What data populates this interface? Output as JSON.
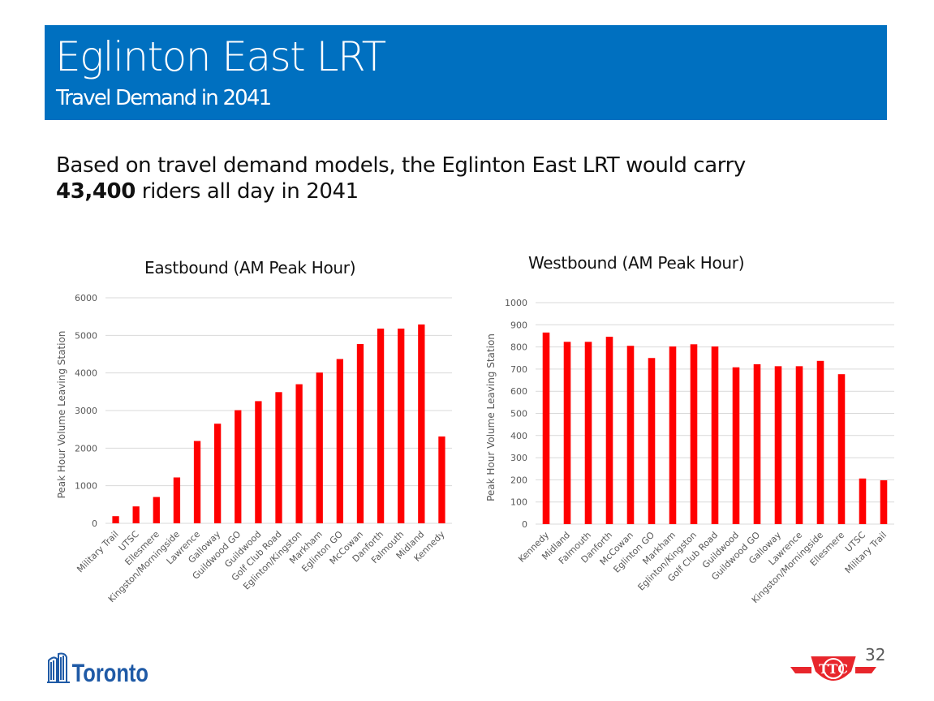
{
  "banner": {
    "title": "Eglinton East LRT",
    "subtitle": "Travel Demand in 2041"
  },
  "intro": {
    "line1": "Based on travel demand models, the Eglinton East LRT would carry",
    "highlight": "43,400",
    "line2_rest": " riders all day in 2041"
  },
  "footer": {
    "page_number": "32",
    "left_logo": "Toronto",
    "right_logo": "TTC"
  },
  "colors": {
    "banner": "#0070c0",
    "bar": "#ff0000",
    "grid": "#d9d9d9",
    "tick_text": "#595959"
  },
  "chart_data": [
    {
      "type": "bar",
      "title": "Eastbound (AM Peak Hour)",
      "xlabel": "",
      "ylabel": "Peak Hour Volume Leaving Station",
      "ylim": [
        0,
        6000
      ],
      "yticks": [
        0,
        1000,
        2000,
        3000,
        4000,
        5000,
        6000
      ],
      "grid": true,
      "legend": "none",
      "categories": [
        "Military Trail",
        "UTSC",
        "Ellesmere",
        "Kingston/Morningside",
        "Lawrence",
        "Galloway",
        "Guildwood GO",
        "Guildwood",
        "Golf Club Road",
        "Eglinton/Kingston",
        "Markham",
        "Eglinton GO",
        "McCowan",
        "Danforth",
        "Falmouth",
        "Midland",
        "Kennedy"
      ],
      "values": [
        190,
        450,
        700,
        1220,
        2190,
        2650,
        3010,
        3250,
        3490,
        3700,
        4010,
        4370,
        4770,
        5180,
        5180,
        5290,
        2310
      ]
    },
    {
      "type": "bar",
      "title": "Westbound (AM Peak Hour)",
      "xlabel": "",
      "ylabel": "Peak Hour Volume Leaving Station",
      "ylim": [
        0,
        1000
      ],
      "yticks": [
        0,
        100,
        200,
        300,
        400,
        500,
        600,
        700,
        800,
        900,
        1000
      ],
      "grid": true,
      "legend": "none",
      "categories": [
        "Kennedy",
        "Midland",
        "Falmouth",
        "Danforth",
        "McCowan",
        "Eglinton GO",
        "Markham",
        "Eglinton/Kingston",
        "Golf Club Road",
        "Guildwood",
        "Guildwood GO",
        "Galloway",
        "Lawrence",
        "Kingston/Morningside",
        "Ellesmere",
        "UTSC",
        "Military Trail"
      ],
      "values": [
        865,
        823,
        823,
        846,
        805,
        750,
        802,
        812,
        802,
        708,
        722,
        713,
        713,
        737,
        677,
        206,
        198
      ]
    }
  ]
}
